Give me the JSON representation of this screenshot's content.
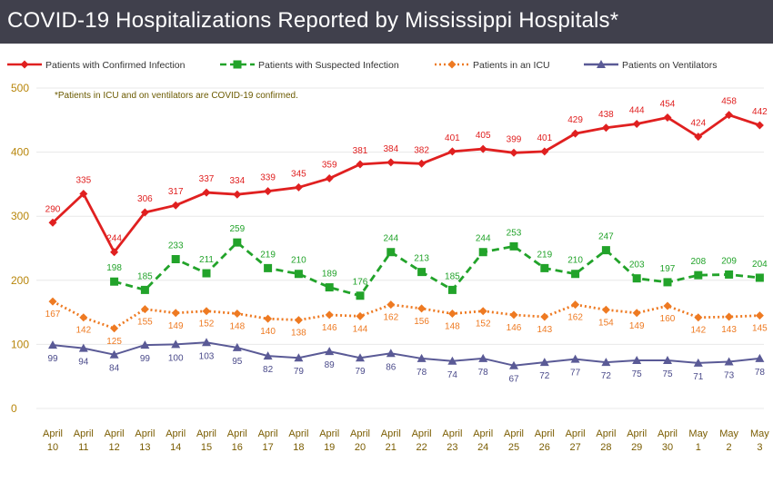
{
  "chart_data": {
    "type": "line",
    "title": "COVID-19 Hospitalizations Reported by Mississippi Hospitals*",
    "note": "*Patients in ICU and on ventilators are COVID-19 confirmed.",
    "xlabel": "",
    "ylabel": "",
    "ylim": [
      0,
      500
    ],
    "yticks": [
      0,
      100,
      200,
      300,
      400,
      500
    ],
    "categories": [
      [
        "April",
        "10"
      ],
      [
        "April",
        "11"
      ],
      [
        "April",
        "12"
      ],
      [
        "April",
        "13"
      ],
      [
        "April",
        "14"
      ],
      [
        "April",
        "15"
      ],
      [
        "April",
        "16"
      ],
      [
        "April",
        "17"
      ],
      [
        "April",
        "18"
      ],
      [
        "April",
        "19"
      ],
      [
        "April",
        "20"
      ],
      [
        "April",
        "21"
      ],
      [
        "April",
        "22"
      ],
      [
        "April",
        "23"
      ],
      [
        "April",
        "24"
      ],
      [
        "April",
        "25"
      ],
      [
        "April",
        "26"
      ],
      [
        "April",
        "27"
      ],
      [
        "April",
        "28"
      ],
      [
        "April",
        "29"
      ],
      [
        "April",
        "30"
      ],
      [
        "May",
        "1"
      ],
      [
        "May",
        "2"
      ],
      [
        "May",
        "3"
      ]
    ],
    "series": [
      {
        "name": "Patients with Confirmed Infection",
        "color": "#e02020",
        "marker": "diamond",
        "dash": "solid",
        "values": [
          290,
          335,
          244,
          306,
          317,
          337,
          334,
          339,
          345,
          359,
          381,
          384,
          382,
          401,
          405,
          399,
          401,
          429,
          438,
          444,
          454,
          424,
          458,
          442
        ]
      },
      {
        "name": "Patients with Suspected Infection",
        "color": "#22a32a",
        "marker": "square",
        "dash": "dashed",
        "values": [
          null,
          null,
          198,
          185,
          233,
          211,
          259,
          219,
          210,
          189,
          176,
          244,
          213,
          185,
          244,
          253,
          219,
          210,
          247,
          203,
          197,
          208,
          209,
          204
        ]
      },
      {
        "name": "Patients in an ICU",
        "color": "#ee7a22",
        "marker": "diamond",
        "dash": "dotted",
        "values": [
          167,
          142,
          125,
          155,
          149,
          152,
          148,
          140,
          138,
          146,
          144,
          162,
          156,
          148,
          152,
          146,
          143,
          162,
          154,
          149,
          160,
          142,
          143,
          145
        ]
      },
      {
        "name": "Patients on Ventilators",
        "color": "#5a5a96",
        "marker": "triangle",
        "dash": "solid",
        "values": [
          99,
          94,
          84,
          99,
          100,
          103,
          95,
          82,
          79,
          89,
          79,
          86,
          78,
          74,
          78,
          67,
          72,
          77,
          72,
          75,
          75,
          71,
          73,
          78
        ]
      }
    ]
  }
}
